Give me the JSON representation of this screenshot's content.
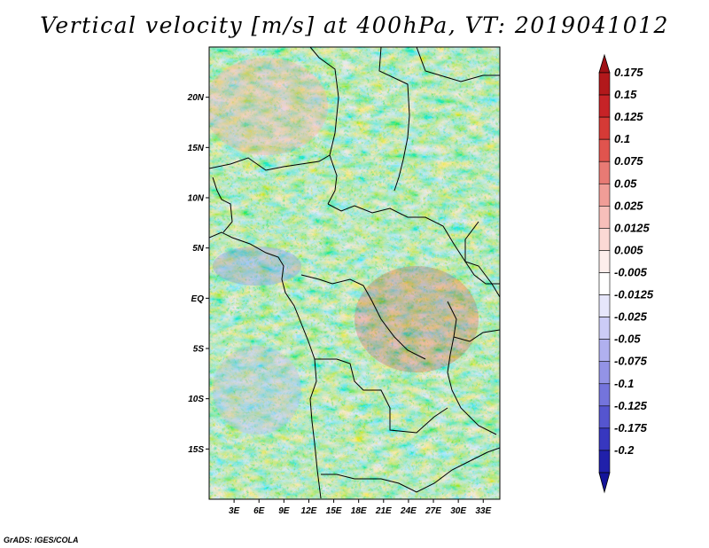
{
  "title": "Vertical velocity [m/s] at 400hPa, VT: 2019041012",
  "credit": "GrADS: IGES/COLA",
  "map": {
    "variable": "Vertical velocity",
    "units": "m/s",
    "level": "400hPa",
    "valid_time": "2019041012",
    "lat_ticks": [
      {
        "value": 20,
        "label": "20N"
      },
      {
        "value": 15,
        "label": "15N"
      },
      {
        "value": 10,
        "label": "10N"
      },
      {
        "value": 5,
        "label": "5N"
      },
      {
        "value": 0,
        "label": "EQ"
      },
      {
        "value": -5,
        "label": "5S"
      },
      {
        "value": -10,
        "label": "10S"
      },
      {
        "value": -15,
        "label": "15S"
      }
    ],
    "lon_ticks": [
      {
        "value": 3,
        "label": "3E"
      },
      {
        "value": 6,
        "label": "6E"
      },
      {
        "value": 9,
        "label": "9E"
      },
      {
        "value": 12,
        "label": "12E"
      },
      {
        "value": 15,
        "label": "15E"
      },
      {
        "value": 18,
        "label": "18E"
      },
      {
        "value": 21,
        "label": "21E"
      },
      {
        "value": 24,
        "label": "24E"
      },
      {
        "value": 27,
        "label": "27E"
      },
      {
        "value": 30,
        "label": "30E"
      },
      {
        "value": 33,
        "label": "33E"
      }
    ],
    "lon_range": [
      0,
      35
    ],
    "lat_range": [
      -20,
      25
    ]
  },
  "colorbar": {
    "levels": [
      {
        "label": "0.175",
        "color": "#b2181b"
      },
      {
        "label": "0.15",
        "color": "#c62327"
      },
      {
        "label": "0.125",
        "color": "#d53a36"
      },
      {
        "label": "0.1",
        "color": "#e0544e"
      },
      {
        "label": "0.075",
        "color": "#e87a74"
      },
      {
        "label": "0.05",
        "color": "#f09d97"
      },
      {
        "label": "0.025",
        "color": "#f7bfba"
      },
      {
        "label": "0.0125",
        "color": "#fbd9d5"
      },
      {
        "label": "0.005",
        "color": "#fdeeec"
      },
      {
        "label": "-0.005",
        "color": "#ffffff"
      },
      {
        "label": "-0.0125",
        "color": "#e6e6fb"
      },
      {
        "label": "-0.025",
        "color": "#ccccf6"
      },
      {
        "label": "-0.05",
        "color": "#b0b0ef"
      },
      {
        "label": "-0.075",
        "color": "#9393e6"
      },
      {
        "label": "-0.1",
        "color": "#7474dc"
      },
      {
        "label": "-0.125",
        "color": "#5555cf"
      },
      {
        "label": "-0.175",
        "color": "#3737bf"
      },
      {
        "label": "-0.2",
        "color": "#2020aa"
      }
    ],
    "top_color": "#a01015",
    "bottom_color": "#14149a"
  }
}
